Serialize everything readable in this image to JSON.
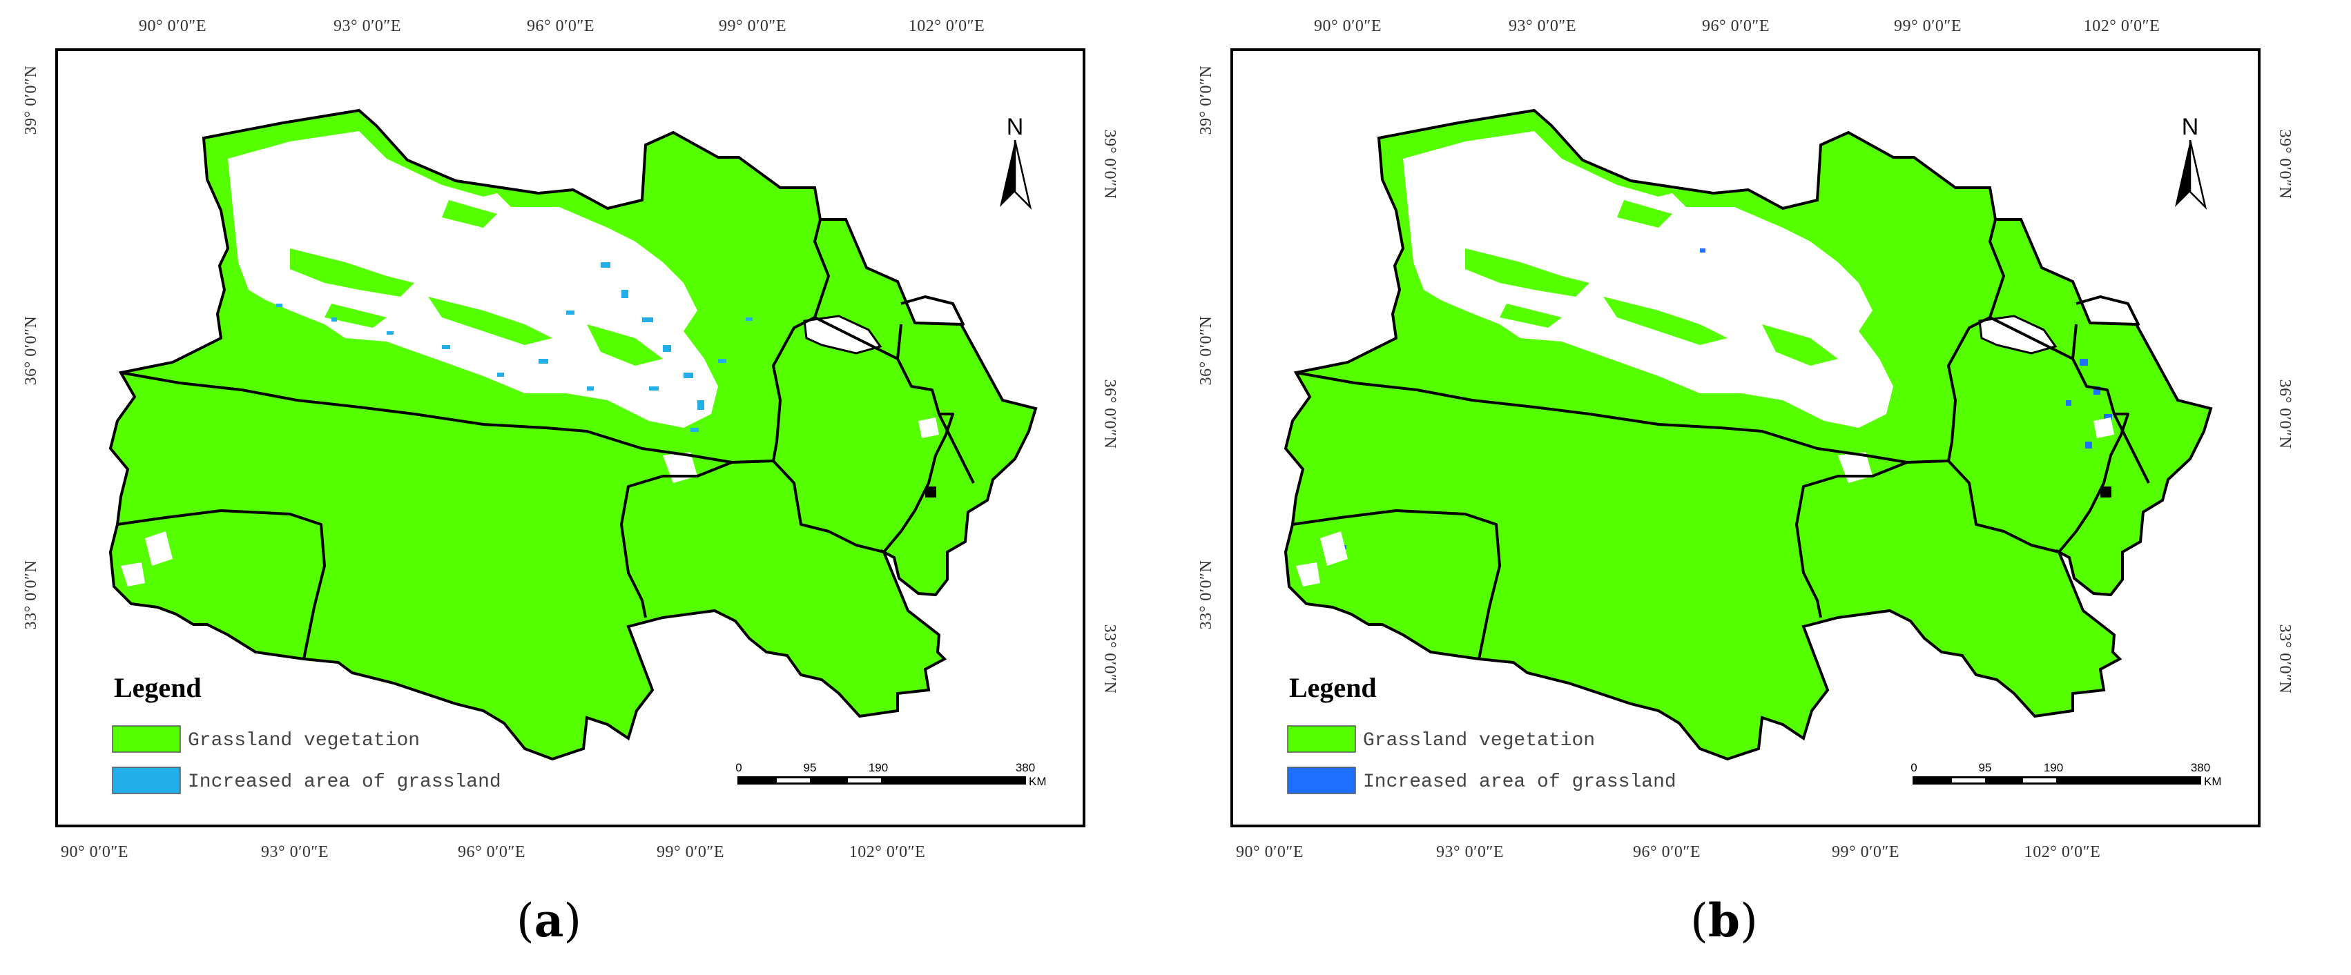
{
  "figure": {
    "panels": [
      {
        "id": "a",
        "label_open": "(",
        "label_letter": "a",
        "label_close": ")",
        "increase_color": "#22aee8"
      },
      {
        "id": "b",
        "label_open": "(",
        "label_letter": "b",
        "label_close": ")",
        "increase_color": "#1f6fff"
      }
    ],
    "top_longitudes": [
      "90° 0′0″E",
      "93° 0′0″E",
      "96° 0′0″E",
      "99° 0′0″E",
      "102° 0′0″E"
    ],
    "bottom_longitudes": [
      "90° 0′0″E",
      "93° 0′0″E",
      "96° 0′0″E",
      "99° 0′0″E",
      "102° 0′0″E"
    ],
    "left_latitudes": [
      "39° 0′0″N",
      "36° 0′0″N",
      "33° 0′0″N"
    ],
    "right_latitudes": [
      "39° 0′0″N",
      "36° 0′0″N",
      "33° 0′0″N"
    ],
    "legend": {
      "title": "Legend",
      "grassland_label": "Grassland vegetation",
      "increase_label": "Increased area of grassland",
      "grassland_color": "#55ff00"
    },
    "scale_bar": {
      "ticks": [
        "0",
        "95",
        "190",
        "380"
      ],
      "unit": "KM"
    },
    "north_arrow": "N"
  }
}
